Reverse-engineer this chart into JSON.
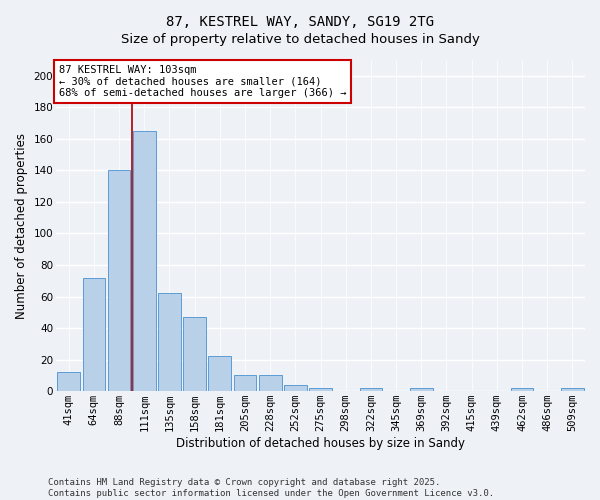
{
  "title": "87, KESTREL WAY, SANDY, SG19 2TG",
  "subtitle": "Size of property relative to detached houses in Sandy",
  "bar_values": [
    12,
    72,
    140,
    165,
    62,
    47,
    22,
    10,
    10,
    4,
    2,
    0,
    2,
    0,
    2,
    0,
    0,
    0,
    2,
    0,
    2
  ],
  "x_labels": [
    "41sqm",
    "64sqm",
    "88sqm",
    "111sqm",
    "135sqm",
    "158sqm",
    "181sqm",
    "205sqm",
    "228sqm",
    "252sqm",
    "275sqm",
    "298sqm",
    "322sqm",
    "345sqm",
    "369sqm",
    "392sqm",
    "415sqm",
    "439sqm",
    "462sqm",
    "486sqm",
    "509sqm"
  ],
  "bar_color": "#b8d0e8",
  "bar_edge_color": "#5b9bd5",
  "xlabel": "Distribution of detached houses by size in Sandy",
  "ylabel": "Number of detached properties",
  "ylim": [
    0,
    210
  ],
  "yticks": [
    0,
    20,
    40,
    60,
    80,
    100,
    120,
    140,
    160,
    180,
    200
  ],
  "red_line_x": 2.5,
  "annotation_text": "87 KESTREL WAY: 103sqm\n← 30% of detached houses are smaller (164)\n68% of semi-detached houses are larger (366) →",
  "annotation_box_color": "#ffffff",
  "annotation_box_edge": "#cc0000",
  "footer_text": "Contains HM Land Registry data © Crown copyright and database right 2025.\nContains public sector information licensed under the Open Government Licence v3.0.",
  "background_color": "#eef2f7",
  "grid_color": "#ffffff",
  "title_fontsize": 10,
  "subtitle_fontsize": 9.5,
  "axis_label_fontsize": 8.5,
  "tick_fontsize": 7.5,
  "annotation_fontsize": 7.5,
  "footer_fontsize": 6.5
}
